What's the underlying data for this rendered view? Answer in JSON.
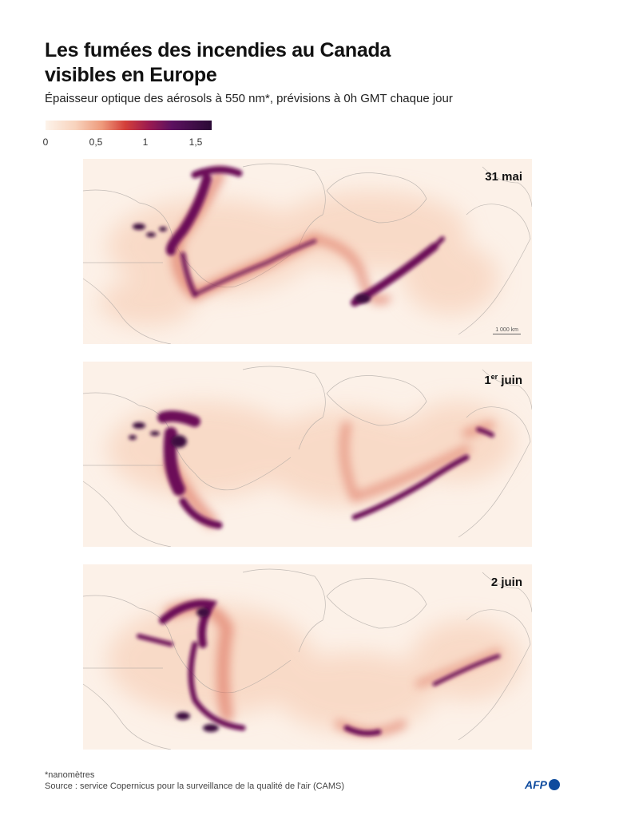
{
  "title_line1": "Les fumées des incendies au Canada",
  "title_line2": "visibles en Europe",
  "subtitle": "Épaisseur optique des aérosols à 550 nm*, prévisions à 0h GMT chaque jour",
  "legend": {
    "labels": [
      "0",
      "0,5",
      "1",
      "1,5"
    ],
    "colors": [
      "#fdf3ea",
      "#f8d3bd",
      "#ee9a7b",
      "#d43f3a",
      "#9c1a50",
      "#5c1160",
      "#2a0a35"
    ]
  },
  "maps": [
    {
      "date_main": "31 mai",
      "date_sup": "",
      "date_after": "",
      "scale_label": "1 000 km"
    },
    {
      "date_main": "1",
      "date_sup": "er",
      "date_after": " juin"
    },
    {
      "date_main": "2 juin",
      "date_sup": "",
      "date_after": ""
    }
  ],
  "footnote": "*nanomètres",
  "source": "Source : service Copernicus pour la surveillance de la qualité de l'air (CAMS)",
  "logo_text": "AFP"
}
